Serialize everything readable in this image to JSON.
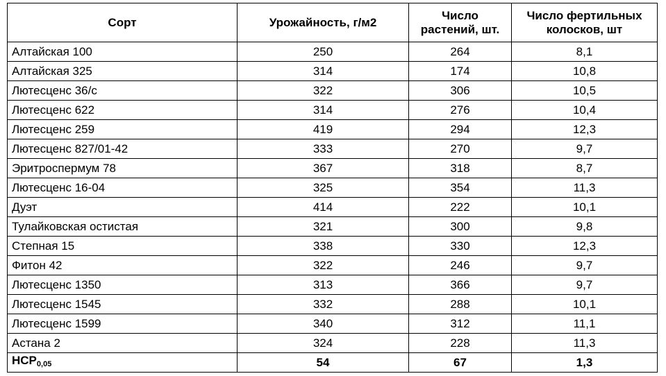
{
  "headers": {
    "variety": "Сорт",
    "yield": "Урожайность, г/м2",
    "plants": "Число растений, шт.",
    "spikes": "Число фертильных колосков, шт"
  },
  "rows": [
    {
      "variety": "Алтайская 100",
      "yield": "250",
      "plants": "264",
      "spikes": "8,1"
    },
    {
      "variety": "Алтайская 325",
      "yield": "314",
      "plants": "174",
      "spikes": "10,8"
    },
    {
      "variety": "Лютесценс 36/с",
      "yield": "322",
      "plants": "306",
      "spikes": "10,5"
    },
    {
      "variety": "Лютесценс 622",
      "yield": "314",
      "plants": "276",
      "spikes": "10,4"
    },
    {
      "variety": "Лютесценс 259",
      "yield": "419",
      "plants": "294",
      "spikes": "12,3"
    },
    {
      "variety": "Лютесценс 827/01-42",
      "yield": "333",
      "plants": "270",
      "spikes": "9,7"
    },
    {
      "variety": "Эритроспермум 78",
      "yield": "367",
      "plants": "318",
      "spikes": "8,7"
    },
    {
      "variety": "Лютесценс 16-04",
      "yield": "325",
      "plants": "354",
      "spikes": "11,3"
    },
    {
      "variety": "Дуэт",
      "yield": "414",
      "plants": "222",
      "spikes": "10,1"
    },
    {
      "variety": "Тулайковская остистая",
      "yield": "321",
      "plants": "300",
      "spikes": "9,8"
    },
    {
      "variety": "Степная 15",
      "yield": "338",
      "plants": "330",
      "spikes": "12,3"
    },
    {
      "variety": "Фитон 42",
      "yield": "322",
      "plants": "246",
      "spikes": "9,7"
    },
    {
      "variety": "Лютесценс 1350",
      "yield": "313",
      "plants": "366",
      "spikes": "9,7"
    },
    {
      "variety": "Лютесценс 1545",
      "yield": "332",
      "plants": "288",
      "spikes": "10,1"
    },
    {
      "variety": "Лютесценс 1599",
      "yield": "340",
      "plants": "312",
      "spikes": "11,1"
    },
    {
      "variety": "Астана 2",
      "yield": "324",
      "plants": "228",
      "spikes": "11,3"
    }
  ],
  "total": {
    "label": "НСР",
    "label_sub": "0,05",
    "yield": "54",
    "plants": "67",
    "spikes": "1,3"
  }
}
